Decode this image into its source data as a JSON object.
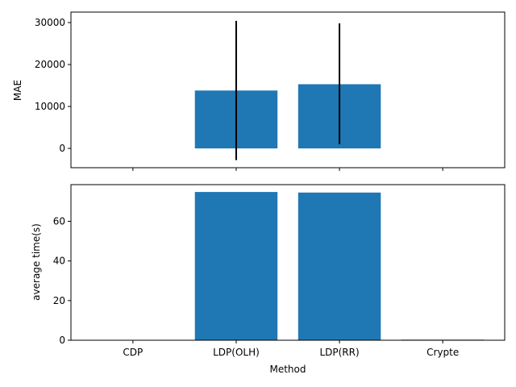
{
  "chart_data": [
    {
      "type": "bar",
      "categories": [
        "CDP",
        "LDP(OLH)",
        "LDP(RR)",
        "Crypte"
      ],
      "values": [
        0,
        13800,
        15300,
        0
      ],
      "error_bars": [
        null,
        [
          -2800,
          30400
        ],
        [
          1000,
          29800
        ],
        null
      ],
      "ylabel": "MAE",
      "xlabel": "",
      "ylim": [
        -4600,
        32500
      ],
      "yticks": [
        0,
        10000,
        20000,
        30000
      ],
      "show_xticklabels": false,
      "color": "#1f77b4",
      "errorbar_color": "#000000",
      "grid": false
    },
    {
      "type": "bar",
      "categories": [
        "CDP",
        "LDP(OLH)",
        "LDP(RR)",
        "Crypte"
      ],
      "values": [
        0,
        74.8,
        74.5,
        0.3
      ],
      "ylabel": "average time(s)",
      "xlabel": "Method",
      "ylim": [
        0,
        78.5
      ],
      "yticks": [
        0,
        20,
        40,
        60
      ],
      "show_xticklabels": true,
      "color": "#1f77b4",
      "grid": false
    }
  ]
}
